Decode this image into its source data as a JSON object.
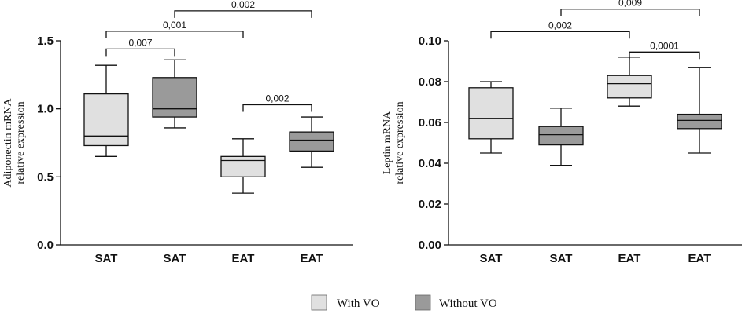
{
  "legend": [
    {
      "label": "With VO",
      "color": "#e0e0e0"
    },
    {
      "label": "Without VO",
      "color": "#9a9a9a"
    }
  ],
  "chart_data": [
    {
      "type": "boxplot",
      "title": "",
      "ylabel_lines": [
        "Adiponectin mRNA",
        "relative expression"
      ],
      "ylim": [
        0,
        1.5
      ],
      "yticks": [
        0.0,
        0.5,
        1.0,
        1.5
      ],
      "ytick_labels": [
        "0.0",
        "0.5",
        "1.0",
        "1.5"
      ],
      "categories": [
        "SAT",
        "SAT",
        "EAT",
        "EAT"
      ],
      "boxes": [
        {
          "category": "SAT",
          "group": "With VO",
          "min": 0.65,
          "q1": 0.73,
          "median": 0.8,
          "q3": 1.11,
          "max": 1.32
        },
        {
          "category": "SAT",
          "group": "Without VO",
          "min": 0.86,
          "q1": 0.94,
          "median": 1.0,
          "q3": 1.23,
          "max": 1.36
        },
        {
          "category": "EAT",
          "group": "With VO",
          "min": 0.38,
          "q1": 0.5,
          "median": 0.62,
          "q3": 0.65,
          "max": 0.78
        },
        {
          "category": "EAT",
          "group": "Without VO",
          "min": 0.57,
          "q1": 0.69,
          "median": 0.77,
          "q3": 0.83,
          "max": 0.94
        }
      ],
      "significance": [
        {
          "from": 1,
          "to": 3,
          "label": "0,002",
          "level": 1.72
        },
        {
          "from": 0,
          "to": 2,
          "label": "0,001",
          "level": 1.57
        },
        {
          "from": 0,
          "to": 1,
          "label": "0,007",
          "level": 1.44
        },
        {
          "from": 2,
          "to": 3,
          "label": "0,002",
          "level": 1.03
        }
      ]
    },
    {
      "type": "boxplot",
      "title": "",
      "ylabel_lines": [
        "Leptin mRNA",
        "relative expression"
      ],
      "ylim": [
        0,
        0.1
      ],
      "yticks": [
        0.0,
        0.02,
        0.04,
        0.06,
        0.08,
        0.1
      ],
      "ytick_labels": [
        "0.00",
        "0.02",
        "0.04",
        "0.06",
        "0.08",
        "0.10"
      ],
      "categories": [
        "SAT",
        "SAT",
        "EAT",
        "EAT"
      ],
      "boxes": [
        {
          "category": "SAT",
          "group": "With VO",
          "min": 0.045,
          "q1": 0.052,
          "median": 0.062,
          "q3": 0.077,
          "max": 0.08
        },
        {
          "category": "SAT",
          "group": "Without VO",
          "min": 0.039,
          "q1": 0.049,
          "median": 0.054,
          "q3": 0.058,
          "max": 0.067
        },
        {
          "category": "EAT",
          "group": "With VO",
          "min": 0.068,
          "q1": 0.072,
          "median": 0.079,
          "q3": 0.083,
          "max": 0.092
        },
        {
          "category": "EAT",
          "group": "Without VO",
          "min": 0.045,
          "q1": 0.057,
          "median": 0.061,
          "q3": 0.064,
          "max": 0.087
        }
      ],
      "significance": [
        {
          "from": 1,
          "to": 3,
          "label": "0,009",
          "level": 0.1155
        },
        {
          "from": 0,
          "to": 2,
          "label": "0,002",
          "level": 0.1045
        },
        {
          "from": 2,
          "to": 3,
          "label": "0,0001",
          "level": 0.0945
        }
      ]
    }
  ]
}
